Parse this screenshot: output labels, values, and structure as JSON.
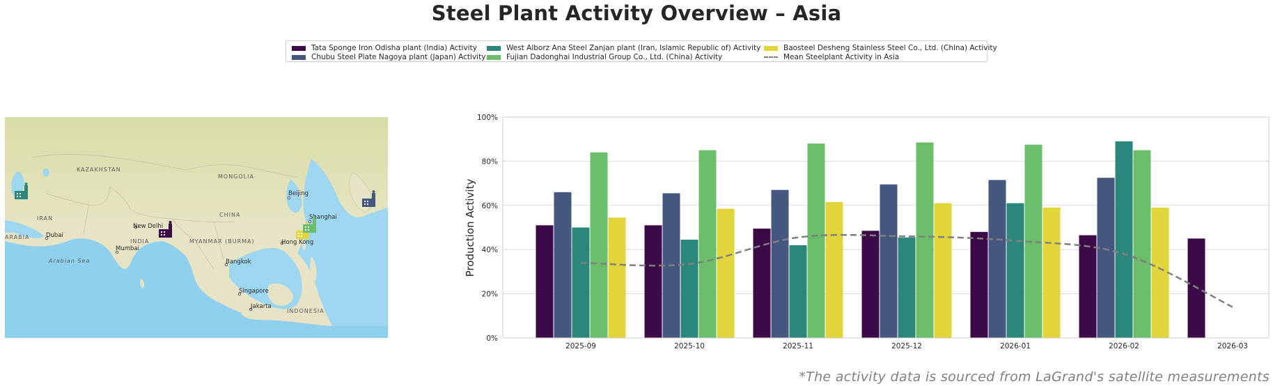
{
  "title": "Steel Plant Activity Overview – Asia",
  "legend": [
    {
      "label": "Tata Sponge Iron Odisha plant (India) Activity",
      "color": "#3b0a47",
      "kind": "bar"
    },
    {
      "label": "Chubu Steel Plate Nagoya plant (Japan) Activity",
      "color": "#46577f",
      "kind": "bar"
    },
    {
      "label": "West Alborz Ana Steel Zanjan plant (Iran, Islamic Republic of) Activity",
      "color": "#2b867c",
      "kind": "bar"
    },
    {
      "label": "Fujian Dadonghai Industrial Group Co., Ltd. (China) Activity",
      "color": "#6bbd6c",
      "kind": "bar"
    },
    {
      "label": "Baosteel Desheng Stainless Steel Co., Ltd. (China) Activity",
      "color": "#e2d43b",
      "kind": "bar"
    },
    {
      "label": "Mean Steelplant Activity in Asia",
      "color": "#7f7f7f",
      "kind": "dashed-line"
    }
  ],
  "map": {
    "labels": [
      "KAZAKHSTAN",
      "MONGOLIA",
      "CHINA",
      "IRAN",
      "INDIA",
      "MYANMAR (BURMA)",
      "ARABIA",
      "INDONESIA",
      "Arabian Sea"
    ],
    "cities": [
      "Beijing",
      "Shanghai",
      "New Delhi",
      "Dubai",
      "Mumbai",
      "Bangkok",
      "Hong Kong",
      "Singapore",
      "Jakarta"
    ],
    "markers": [
      {
        "plant": "West Alborz Ana Steel Zanjan plant (Iran, Islamic Republic of)",
        "color": "#2b867c",
        "icon": "factory-icon"
      },
      {
        "plant": "Tata Sponge Iron Odisha plant (India)",
        "color": "#3b0a47",
        "icon": "factory-icon"
      },
      {
        "plant": "Baosteel Desheng Stainless Steel Co., Ltd. (China)",
        "color": "#e2d43b",
        "icon": "factory-icon"
      },
      {
        "plant": "Fujian Dadonghai Industrial Group Co., Ltd. (China)",
        "color": "#6bbd6c",
        "icon": "factory-icon"
      },
      {
        "plant": "Chubu Steel Plate Nagoya plant (Japan)",
        "color": "#46577f",
        "icon": "factory-icon"
      }
    ]
  },
  "chart_data": {
    "type": "bar",
    "categories": [
      "2025-09",
      "2025-10",
      "2025-11",
      "2025-12",
      "2026-01",
      "2026-02",
      "2026-03"
    ],
    "ylabel": "Production Activity",
    "ylim": [
      0,
      100
    ],
    "yticks": [
      "0%",
      "20%",
      "40%",
      "60%",
      "80%",
      "100%"
    ],
    "grid": true,
    "series": [
      {
        "name": "Tata Sponge Iron Odisha plant (India) Activity",
        "color": "#3b0a47",
        "values": [
          51,
          51,
          49.5,
          48.5,
          48,
          46.5,
          45
        ]
      },
      {
        "name": "Chubu Steel Plate Nagoya plant (Japan) Activity",
        "color": "#46577f",
        "values": [
          66,
          65.5,
          67,
          69.5,
          71.5,
          72.5,
          null
        ]
      },
      {
        "name": "West Alborz Ana Steel Zanjan plant (Iran, Islamic Republic of) Activity",
        "color": "#2b867c",
        "values": [
          50,
          44.5,
          42,
          45.5,
          61,
          89,
          null
        ]
      },
      {
        "name": "Fujian Dadonghai Industrial Group Co., Ltd. (China) Activity",
        "color": "#6bbd6c",
        "values": [
          84,
          85,
          88,
          88.5,
          87.5,
          85,
          null
        ]
      },
      {
        "name": "Baosteel Desheng Stainless Steel Co., Ltd. (China) Activity",
        "color": "#e2d43b",
        "values": [
          54.5,
          58.5,
          61.5,
          61,
          59,
          59,
          null
        ]
      }
    ],
    "mean_line": {
      "name": "Mean Steelplant Activity in Asia",
      "color": "#7f7f7f",
      "style": "dashed",
      "values": [
        34,
        33.5,
        45.5,
        46,
        44,
        38,
        14
      ]
    }
  },
  "footnote": "*The activity data is sourced from LaGrand's satellite measurements"
}
